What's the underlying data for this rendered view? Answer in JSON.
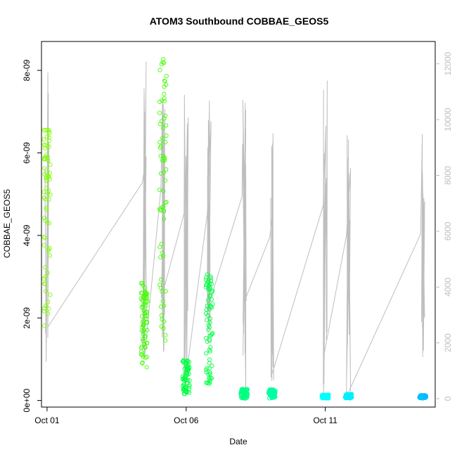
{
  "chart_data": {
    "type": "scatter",
    "title": "ATOM3 Southbound COBBAE_GEOS5",
    "xlabel": "Date",
    "ylabel": "COBBAE_GEOS5",
    "x_ticks": [
      "Oct 01",
      "Oct 06",
      "Oct 11"
    ],
    "y_ticks": [
      "0e+00",
      "2e-09",
      "4e-09",
      "6e-09",
      "8e-09"
    ],
    "y_right_ticks": [
      "0",
      "2000",
      "4000",
      "6000",
      "8000",
      "10000",
      "12000"
    ],
    "xlim": [
      "2016-09-30T19:12",
      "2016-10-14T22:48"
    ],
    "ylim": [
      -1.6e-10,
      8.7e-09
    ],
    "ylim_right": [
      -300,
      12800
    ],
    "grid": false,
    "legend": "none",
    "series": [
      {
        "kind": "points",
        "colors": [
          "#7FFF00",
          "#40FF00",
          "#00FF80",
          "#00FFBF",
          "#00FFFF",
          "#00BFFF"
        ],
        "clusters": [
          {
            "t": "2016-10-01T00:00",
            "ymin": 1.8e-09,
            "ymax": 6.75e-09,
            "color": "#7FFF00"
          },
          {
            "t": "2016-10-04T12:00",
            "ymin": 8e-10,
            "ymax": 2.85e-09,
            "color": "#40FF00"
          },
          {
            "t": "2016-10-05T04:00",
            "ymin": 1.3e-09,
            "ymax": 8.3e-09,
            "color": "#40FF00"
          },
          {
            "t": "2016-10-06T00:00",
            "ymin": 1.5e-10,
            "ymax": 1e-09,
            "color": "#00FF40"
          },
          {
            "t": "2016-10-06T20:00",
            "ymin": 4e-10,
            "ymax": 3.1e-09,
            "color": "#00FF40"
          },
          {
            "t": "2016-10-08T02:00",
            "ymin": 5e-11,
            "ymax": 2.8e-10,
            "color": "#00FF80"
          },
          {
            "t": "2016-10-09T02:00",
            "ymin": 5e-11,
            "ymax": 2.7e-10,
            "color": "#00FFA0"
          },
          {
            "t": "2016-10-11T00:00",
            "ymin": 5e-11,
            "ymax": 1.4e-10,
            "color": "#00FFFF"
          },
          {
            "t": "2016-10-11T20:00",
            "ymin": 5e-11,
            "ymax": 1.6e-10,
            "color": "#00F0FF"
          },
          {
            "t": "2016-10-14T12:00",
            "ymin": 5e-11,
            "ymax": 1.3e-10,
            "color": "#00BFFF"
          }
        ]
      },
      {
        "kind": "line",
        "axis": "right",
        "color": "#BEBEBE",
        "spikes": [
          {
            "t": "2016-10-01T00:00",
            "low": 600,
            "high": 11900
          },
          {
            "t": "2016-10-04T12:00",
            "low": 900,
            "high": 12300
          },
          {
            "t": "2016-10-05T04:00",
            "low": 900,
            "high": 11900
          },
          {
            "t": "2016-10-06T00:00",
            "low": 250,
            "high": 10900
          },
          {
            "t": "2016-10-06T20:00",
            "low": 350,
            "high": 10800
          },
          {
            "t": "2016-10-08T02:00",
            "low": 100,
            "high": 12000
          },
          {
            "t": "2016-10-09T02:00",
            "low": 100,
            "high": 9600
          },
          {
            "t": "2016-10-11T00:00",
            "low": 50,
            "high": 11500
          },
          {
            "t": "2016-10-11T20:00",
            "low": 50,
            "high": 9700
          },
          {
            "t": "2016-10-14T12:00",
            "low": 50,
            "high": 9800
          }
        ]
      }
    ]
  }
}
